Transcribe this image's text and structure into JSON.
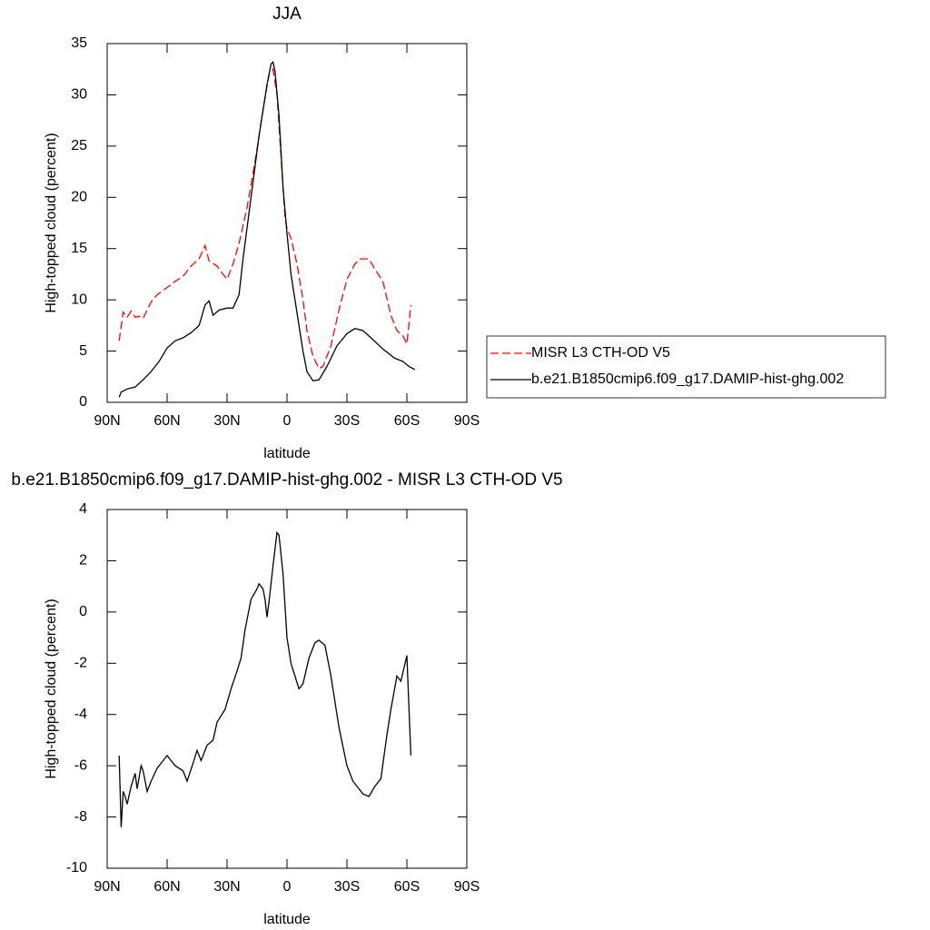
{
  "chart_data": [
    {
      "type": "line",
      "title": "JJA",
      "xlabel": "latitude",
      "ylabel": "High-topped cloud (percent)",
      "xlim": [
        90,
        -90
      ],
      "xticks": [
        {
          "value": 90,
          "label": "90N"
        },
        {
          "value": 60,
          "label": "60N"
        },
        {
          "value": 30,
          "label": "30N"
        },
        0,
        {
          "value": -30,
          "label": "30S"
        },
        {
          "value": -60,
          "label": "60S"
        },
        {
          "value": -90,
          "label": "90S"
        }
      ],
      "ylim": [
        0,
        35
      ],
      "yticks": [
        0,
        5,
        10,
        15,
        20,
        25,
        30,
        35
      ],
      "legend": "right",
      "series": [
        {
          "name": "MISR L3 CTH-OD V5",
          "color": "#ff0000",
          "dash": true,
          "x": [
            84,
            82,
            80,
            78,
            76,
            74,
            72,
            70,
            68,
            65,
            60,
            56,
            52,
            48,
            44,
            41,
            39,
            35,
            32,
            30,
            27,
            24,
            20,
            16,
            12,
            9,
            7,
            5,
            3,
            1,
            0,
            -2,
            -5,
            -8,
            -10,
            -13,
            -16,
            -18,
            -22,
            -26,
            -30,
            -34,
            -37,
            -41,
            -44,
            -48,
            -52,
            -55,
            -58,
            -60,
            -62
          ],
          "values": [
            6.0,
            8.8,
            8.3,
            8.9,
            8.3,
            8.4,
            8.2,
            9.0,
            9.8,
            10.5,
            11.2,
            11.8,
            12.3,
            13.3,
            14.0,
            15.3,
            13.8,
            13.3,
            12.5,
            12.0,
            13.5,
            15.5,
            19.0,
            23.5,
            28.5,
            32.0,
            32.5,
            30,
            24,
            18,
            17,
            16,
            13.5,
            10,
            7,
            4.5,
            3.3,
            3.5,
            5.5,
            9,
            12,
            13.5,
            14,
            14,
            13,
            11.8,
            8.5,
            7,
            6.5,
            5.7,
            9.5
          ]
        },
        {
          "name": "b.e21.B1850cmip6.f09_g17.DAMIP-hist-ghg.002",
          "color": "#000000",
          "dash": false,
          "x": [
            84,
            83,
            80,
            76,
            72,
            68,
            64,
            60,
            56,
            52,
            48,
            44,
            41,
            39,
            37,
            34,
            30,
            27,
            24,
            22,
            18,
            14,
            10,
            8,
            7,
            6,
            4,
            2,
            0,
            -2,
            -4,
            -6,
            -8,
            -10,
            -13,
            -16,
            -20,
            -25,
            -30,
            -34,
            -38,
            -42,
            -48,
            -54,
            -58,
            -61,
            -64
          ],
          "values": [
            0.5,
            1.0,
            1.3,
            1.5,
            2.2,
            3.0,
            4.0,
            5.3,
            6.0,
            6.3,
            6.8,
            7.5,
            9.5,
            9.9,
            8.5,
            9.0,
            9.2,
            9.2,
            10.5,
            14,
            20,
            26,
            31,
            33,
            33.2,
            32.3,
            28,
            21,
            16.5,
            12.5,
            10,
            7.5,
            5,
            3,
            2.1,
            2.2,
            3.5,
            5.5,
            6.7,
            7.2,
            7,
            6.3,
            5.2,
            4.3,
            4,
            3.5,
            3.2
          ]
        }
      ]
    },
    {
      "type": "line",
      "title": "b.e21.B1850cmip6.f09_g17.DAMIP-hist-ghg.002 - MISR L3 CTH-OD V5",
      "xlabel": "latitude",
      "ylabel": "High-topped cloud (percent)",
      "xlim": [
        90,
        -90
      ],
      "xticks": [
        {
          "value": 90,
          "label": "90N"
        },
        {
          "value": 60,
          "label": "60N"
        },
        {
          "value": 30,
          "label": "30N"
        },
        0,
        {
          "value": -30,
          "label": "30S"
        },
        {
          "value": -60,
          "label": "60S"
        },
        {
          "value": -90,
          "label": "90S"
        }
      ],
      "ylim": [
        -10,
        4
      ],
      "yticks": [
        -10,
        -8,
        -6,
        -4,
        -2,
        0,
        2,
        4
      ],
      "series": [
        {
          "color": "#000000",
          "dash": false,
          "x": [
            84,
            83,
            82,
            81,
            80,
            78,
            76,
            75,
            73,
            72,
            70,
            68,
            65,
            60,
            56,
            52,
            50,
            47,
            45,
            43,
            40,
            37,
            35,
            31,
            28,
            25,
            23,
            21,
            18,
            15,
            14,
            12,
            11,
            10,
            9,
            7,
            5,
            4,
            2,
            0,
            -2,
            -4,
            -6,
            -8,
            -11,
            -14,
            -16,
            -19,
            -22,
            -26,
            -30,
            -33,
            -36,
            -38,
            -41,
            -44,
            -47,
            -50,
            -52,
            -55,
            -57,
            -60,
            -62
          ],
          "values": [
            -5.6,
            -8.4,
            -7.0,
            -7.2,
            -7.5,
            -6.8,
            -6.3,
            -6.9,
            -6.0,
            -6.2,
            -7.0,
            -6.6,
            -6.1,
            -5.6,
            -6.0,
            -6.2,
            -6.6,
            -5.9,
            -5.4,
            -5.8,
            -5.2,
            -5.0,
            -4.3,
            -3.8,
            -3.0,
            -2.3,
            -1.8,
            -0.7,
            0.5,
            0.9,
            1.1,
            0.9,
            0.5,
            -0.2,
            0.4,
            1.8,
            3.1,
            3.0,
            1.5,
            -1.0,
            -2.0,
            -2.5,
            -3.0,
            -2.8,
            -1.8,
            -1.2,
            -1.1,
            -1.3,
            -2.5,
            -4.5,
            -6.0,
            -6.6,
            -6.9,
            -7.1,
            -7.2,
            -6.8,
            -6.5,
            -4.8,
            -3.8,
            -2.5,
            -2.7,
            -1.7,
            -5.6
          ]
        }
      ]
    }
  ]
}
